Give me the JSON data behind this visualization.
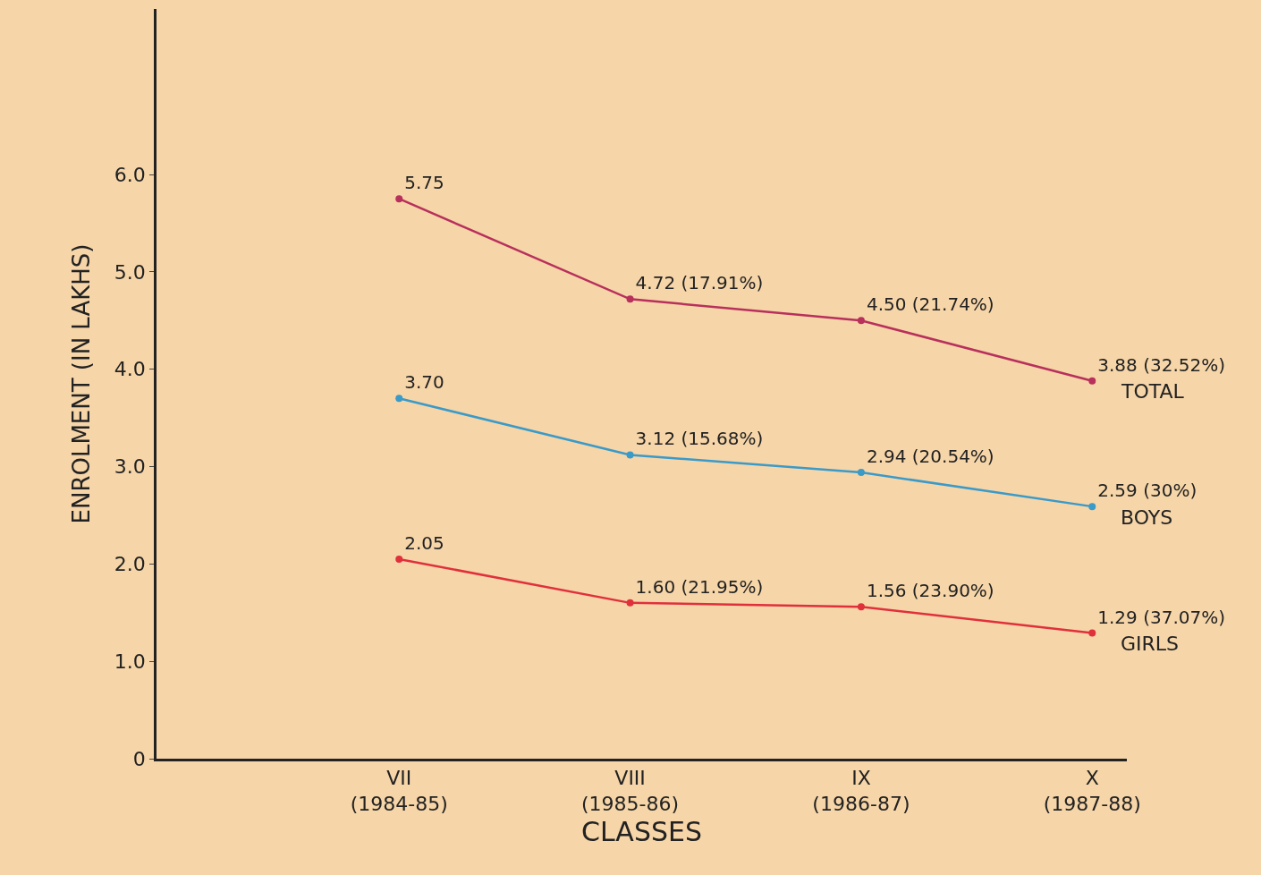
{
  "chart_data": {
    "type": "line",
    "xlabel": "CLASSES",
    "ylabel": "ENROLMENT (IN LAKHS)",
    "categories": [
      "VII\n(1984-85)",
      "VIII\n(1985-86)",
      "IX\n(1986-87)",
      "X\n(1987-88)"
    ],
    "series": [
      {
        "name": "TOTAL",
        "color": "#b8305c",
        "values": [
          5.75,
          4.72,
          4.5,
          3.88
        ],
        "value_labels": [
          "5.75",
          "4.72 (17.91%)",
          "4.50 (21.74%)",
          "3.88 (32.52%)"
        ]
      },
      {
        "name": "BOYS",
        "color": "#3a9ac8",
        "values": [
          3.7,
          3.12,
          2.94,
          2.59
        ],
        "value_labels": [
          "3.70",
          "3.12 (15.68%)",
          "2.94 (20.54%)",
          "2.59 (30%)"
        ]
      },
      {
        "name": "GIRLS",
        "color": "#e0303c",
        "values": [
          2.05,
          1.6,
          1.56,
          1.29
        ],
        "value_labels": [
          "2.05",
          "1.60 (21.95%)",
          "1.56 (23.90%)",
          "1.29 (37.07%)"
        ]
      }
    ],
    "ylim": [
      0,
      7.7
    ],
    "yticks": [
      0,
      {
        "value": 1,
        "label": "1.0"
      },
      {
        "value": 2,
        "label": "2.0"
      },
      {
        "value": 3,
        "label": "3.0"
      },
      {
        "value": 4,
        "label": "4.0"
      },
      {
        "value": 5,
        "label": "5.0"
      },
      {
        "value": 6,
        "label": "6.0"
      }
    ],
    "grid": false,
    "legend": false,
    "marker": "circle",
    "line_style": "solid"
  }
}
